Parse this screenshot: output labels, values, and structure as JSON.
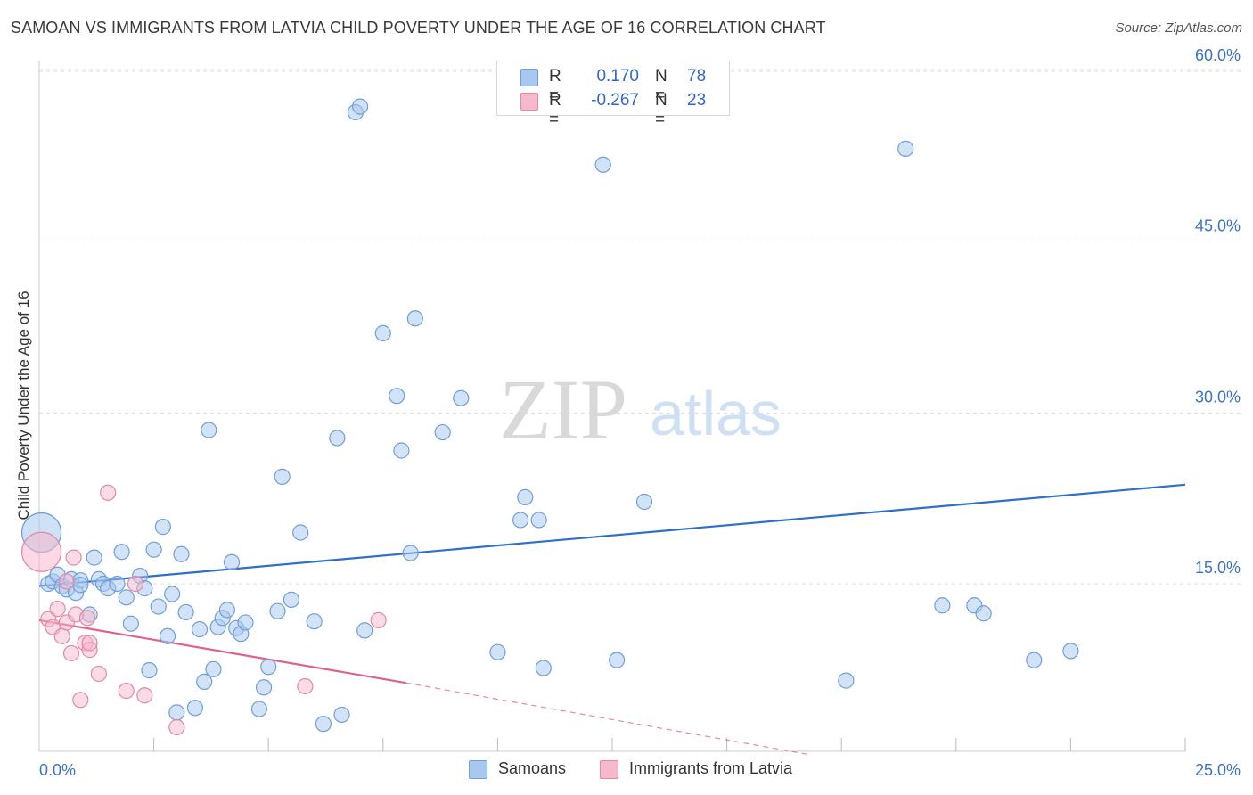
{
  "title": "SAMOAN VS IMMIGRANTS FROM LATVIA CHILD POVERTY UNDER THE AGE OF 16 CORRELATION CHART",
  "source": "Source: ZipAtlas.com",
  "watermark": {
    "zip": "ZIP",
    "atlas": "atlas"
  },
  "legend": {
    "samoans": {
      "r_label": "R =",
      "r_value": "0.170",
      "n_label": "N =",
      "n_value": "78"
    },
    "latvia": {
      "r_label": "R =",
      "r_value": "-0.267",
      "n_label": "N =",
      "n_value": "23"
    }
  },
  "bottom_legend": {
    "samoans": "Samoans",
    "latvia": "Immigrants from Latvia"
  },
  "colors": {
    "samoans_fill": "#a8c8f0",
    "samoans_stroke": "#6f9fd8",
    "samoans_line": "#2e6fcc",
    "latvia_fill": "#f7b8cc",
    "latvia_stroke": "#e08aa6",
    "latvia_line": "#e0608f",
    "tick_label": "#3a72c8",
    "grid": "#dddddd"
  },
  "chart_data": {
    "type": "scatter",
    "title": "SAMOAN VS IMMIGRANTS FROM LATVIA CHILD POVERTY UNDER THE AGE OF 16 CORRELATION CHART",
    "xlabel": "",
    "ylabel": "Child Poverty Under the Age of 16",
    "xlim": [
      0,
      25
    ],
    "ylim": [
      0,
      63
    ],
    "x_tick_labels": [
      {
        "value": 0,
        "label": "0.0%"
      },
      {
        "value": 25,
        "label": "25.0%"
      }
    ],
    "y_tick_labels": [
      {
        "value": 15,
        "label": "15.0%"
      },
      {
        "value": 30,
        "label": "30.0%"
      },
      {
        "value": 45,
        "label": "45.0%"
      },
      {
        "value": 60,
        "label": "60.0%"
      }
    ],
    "grid": true,
    "series": [
      {
        "name": "Samoans",
        "points": [
          [
            0.05,
            19.5
          ],
          [
            0.2,
            15.0
          ],
          [
            0.3,
            15.2
          ],
          [
            0.4,
            15.8
          ],
          [
            0.5,
            14.8
          ],
          [
            0.6,
            14.5
          ],
          [
            0.7,
            15.4
          ],
          [
            0.8,
            14.2
          ],
          [
            0.9,
            15.3
          ],
          [
            1.1,
            12.3
          ],
          [
            1.2,
            17.3
          ],
          [
            1.3,
            15.4
          ],
          [
            1.4,
            15.0
          ],
          [
            1.5,
            14.6
          ],
          [
            1.7,
            15.0
          ],
          [
            1.8,
            17.8
          ],
          [
            1.9,
            13.8
          ],
          [
            2.0,
            11.5
          ],
          [
            2.2,
            15.7
          ],
          [
            2.3,
            14.6
          ],
          [
            2.4,
            7.4
          ],
          [
            2.5,
            18.0
          ],
          [
            2.6,
            13.0
          ],
          [
            2.7,
            20.0
          ],
          [
            2.8,
            10.4
          ],
          [
            2.9,
            14.1
          ],
          [
            3.0,
            3.7
          ],
          [
            3.1,
            17.6
          ],
          [
            3.2,
            12.5
          ],
          [
            3.4,
            4.1
          ],
          [
            3.5,
            11.0
          ],
          [
            3.6,
            6.4
          ],
          [
            3.7,
            28.5
          ],
          [
            3.8,
            7.5
          ],
          [
            3.9,
            11.2
          ],
          [
            4.0,
            12.0
          ],
          [
            4.1,
            12.7
          ],
          [
            4.2,
            16.9
          ],
          [
            4.3,
            11.1
          ],
          [
            4.4,
            10.6
          ],
          [
            4.5,
            11.6
          ],
          [
            4.8,
            4.0
          ],
          [
            4.9,
            5.9
          ],
          [
            5.0,
            7.7
          ],
          [
            5.2,
            12.6
          ],
          [
            5.3,
            24.4
          ],
          [
            5.5,
            13.6
          ],
          [
            5.7,
            19.5
          ],
          [
            6.0,
            11.7
          ],
          [
            6.2,
            2.7
          ],
          [
            6.5,
            27.8
          ],
          [
            6.6,
            3.5
          ],
          [
            6.9,
            56.4
          ],
          [
            7.0,
            56.9
          ],
          [
            7.1,
            10.9
          ],
          [
            7.5,
            37.0
          ],
          [
            7.8,
            31.5
          ],
          [
            7.9,
            26.7
          ],
          [
            8.1,
            17.7
          ],
          [
            8.2,
            38.3
          ],
          [
            8.8,
            28.3
          ],
          [
            9.2,
            31.3
          ],
          [
            10.0,
            9.0
          ],
          [
            10.5,
            20.6
          ],
          [
            10.6,
            22.6
          ],
          [
            10.9,
            20.6
          ],
          [
            11.0,
            7.6
          ],
          [
            12.3,
            51.8
          ],
          [
            12.6,
            8.3
          ],
          [
            13.2,
            22.2
          ],
          [
            17.6,
            6.5
          ],
          [
            18.9,
            53.2
          ],
          [
            19.7,
            13.1
          ],
          [
            20.4,
            13.1
          ],
          [
            20.6,
            12.4
          ],
          [
            21.7,
            8.3
          ],
          [
            22.5,
            9.1
          ],
          [
            0.9,
            14.9
          ]
        ]
      },
      {
        "name": "Immigrants from Latvia",
        "points": [
          [
            0.05,
            17.8
          ],
          [
            0.2,
            11.9
          ],
          [
            0.3,
            11.2
          ],
          [
            0.4,
            12.8
          ],
          [
            0.5,
            10.4
          ],
          [
            0.6,
            11.6
          ],
          [
            0.6,
            15.2
          ],
          [
            0.7,
            8.9
          ],
          [
            0.75,
            17.3
          ],
          [
            0.8,
            12.3
          ],
          [
            0.9,
            4.8
          ],
          [
            1.0,
            9.8
          ],
          [
            1.05,
            12.0
          ],
          [
            1.1,
            9.2
          ],
          [
            1.1,
            9.8
          ],
          [
            1.3,
            7.1
          ],
          [
            1.5,
            23.0
          ],
          [
            1.9,
            5.6
          ],
          [
            2.1,
            15.0
          ],
          [
            2.3,
            5.2
          ],
          [
            3.0,
            2.4
          ],
          [
            5.8,
            6.0
          ],
          [
            7.4,
            11.8
          ]
        ]
      }
    ],
    "trend_lines": [
      {
        "series": "Samoans",
        "from": [
          0,
          14.8
        ],
        "to": [
          25,
          23.7
        ]
      },
      {
        "series": "Immigrants from Latvia",
        "from": [
          0,
          11.8
        ],
        "to": [
          8.0,
          6.3
        ],
        "dashed_to": [
          16.8,
          0
        ]
      }
    ]
  }
}
